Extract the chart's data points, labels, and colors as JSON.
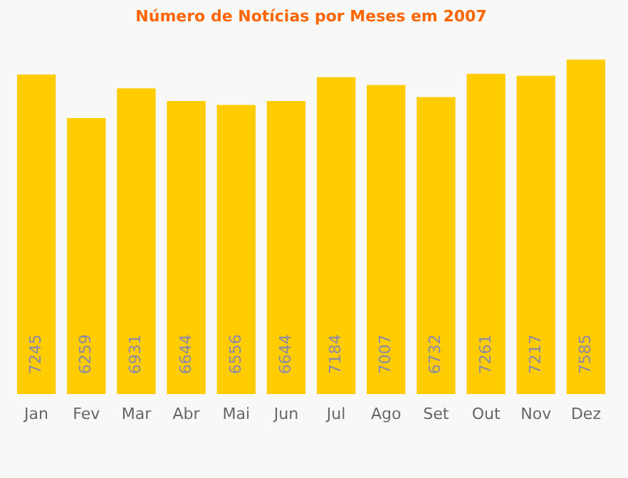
{
  "chart_data": {
    "type": "bar",
    "title": "Número de Notícias por Meses em 2007",
    "categories": [
      "Jan",
      "Fev",
      "Mar",
      "Abr",
      "Mai",
      "Jun",
      "Jul",
      "Ago",
      "Set",
      "Out",
      "Nov",
      "Dez"
    ],
    "values": [
      7245,
      6259,
      6931,
      6644,
      6556,
      6644,
      7184,
      7007,
      6732,
      7261,
      7217,
      7585
    ],
    "color": "#ffcc00",
    "data_labels": true,
    "grid": false
  }
}
